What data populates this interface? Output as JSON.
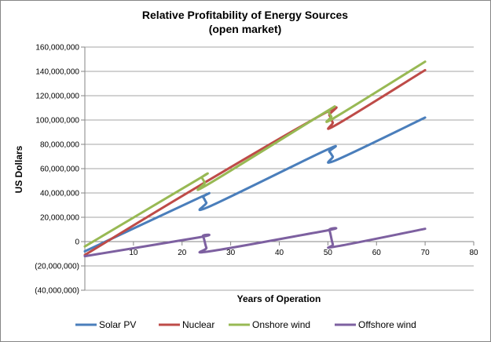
{
  "chart_data": {
    "type": "line",
    "title": "Relative Profitability of Energy Sources",
    "subtitle": "(open market)",
    "xlabel": "Years of Operation",
    "ylabel": "US Dollars",
    "xlim": [
      0,
      80
    ],
    "ylim": [
      -40000000,
      160000000
    ],
    "x_ticks": [
      10,
      20,
      30,
      40,
      50,
      60,
      70,
      80
    ],
    "x_tick_labels": [
      "10",
      "20",
      "30",
      "40",
      "50",
      "60",
      "70",
      "80"
    ],
    "y_ticks": [
      -40000000,
      -20000000,
      0,
      20000000,
      40000000,
      60000000,
      80000000,
      100000000,
      120000000,
      140000000,
      160000000
    ],
    "y_tick_labels": [
      "(40,000,000)",
      "(20,000,000)",
      "0",
      "20,000,000",
      "40,000,000",
      "60,000,000",
      "80,000,000",
      "100,000,000",
      "120,000,000",
      "140,000,000",
      "160,000,000"
    ],
    "grid": "horizontal",
    "legend": "bottom",
    "series": [
      {
        "name": "Solar PV",
        "color": "#4a7ebb",
        "x": [
          0,
          23.5,
          24.3,
          25,
          25.7,
          49.5,
          50.3,
          51,
          51.7,
          70
        ],
        "y": [
          -8000000,
          36000000,
          36500000,
          32000000,
          29000000,
          75000000,
          74000000,
          70000000,
          67000000,
          102000000
        ]
      },
      {
        "name": "Nuclear",
        "color": "#be4b48",
        "x": [
          0,
          24,
          49.5,
          50.3,
          51,
          51.7,
          70
        ],
        "y": [
          -11000000,
          47000000,
          106000000,
          104000000,
          98000000,
          96000000,
          141000000
        ]
      },
      {
        "name": "Onshore wind",
        "color": "#98b954",
        "x": [
          0,
          23.2,
          24,
          24.7,
          25.3,
          49.3,
          50,
          50.7,
          51.4,
          70
        ],
        "y": [
          -4000000,
          51000000,
          52500000,
          48500000,
          47000000,
          106000000,
          107000000,
          103000000,
          102000000,
          148000000
        ]
      },
      {
        "name": "Offshore wind",
        "color": "#7d60a0",
        "x": [
          0,
          23.5,
          24.3,
          25,
          25.7,
          49.6,
          50.3,
          51,
          51.7,
          70
        ],
        "y": [
          -12000000,
          3500000,
          4500000,
          -5000000,
          -8000000,
          9000000,
          9500000,
          -2000000,
          -4000000,
          10500000
        ]
      }
    ]
  }
}
